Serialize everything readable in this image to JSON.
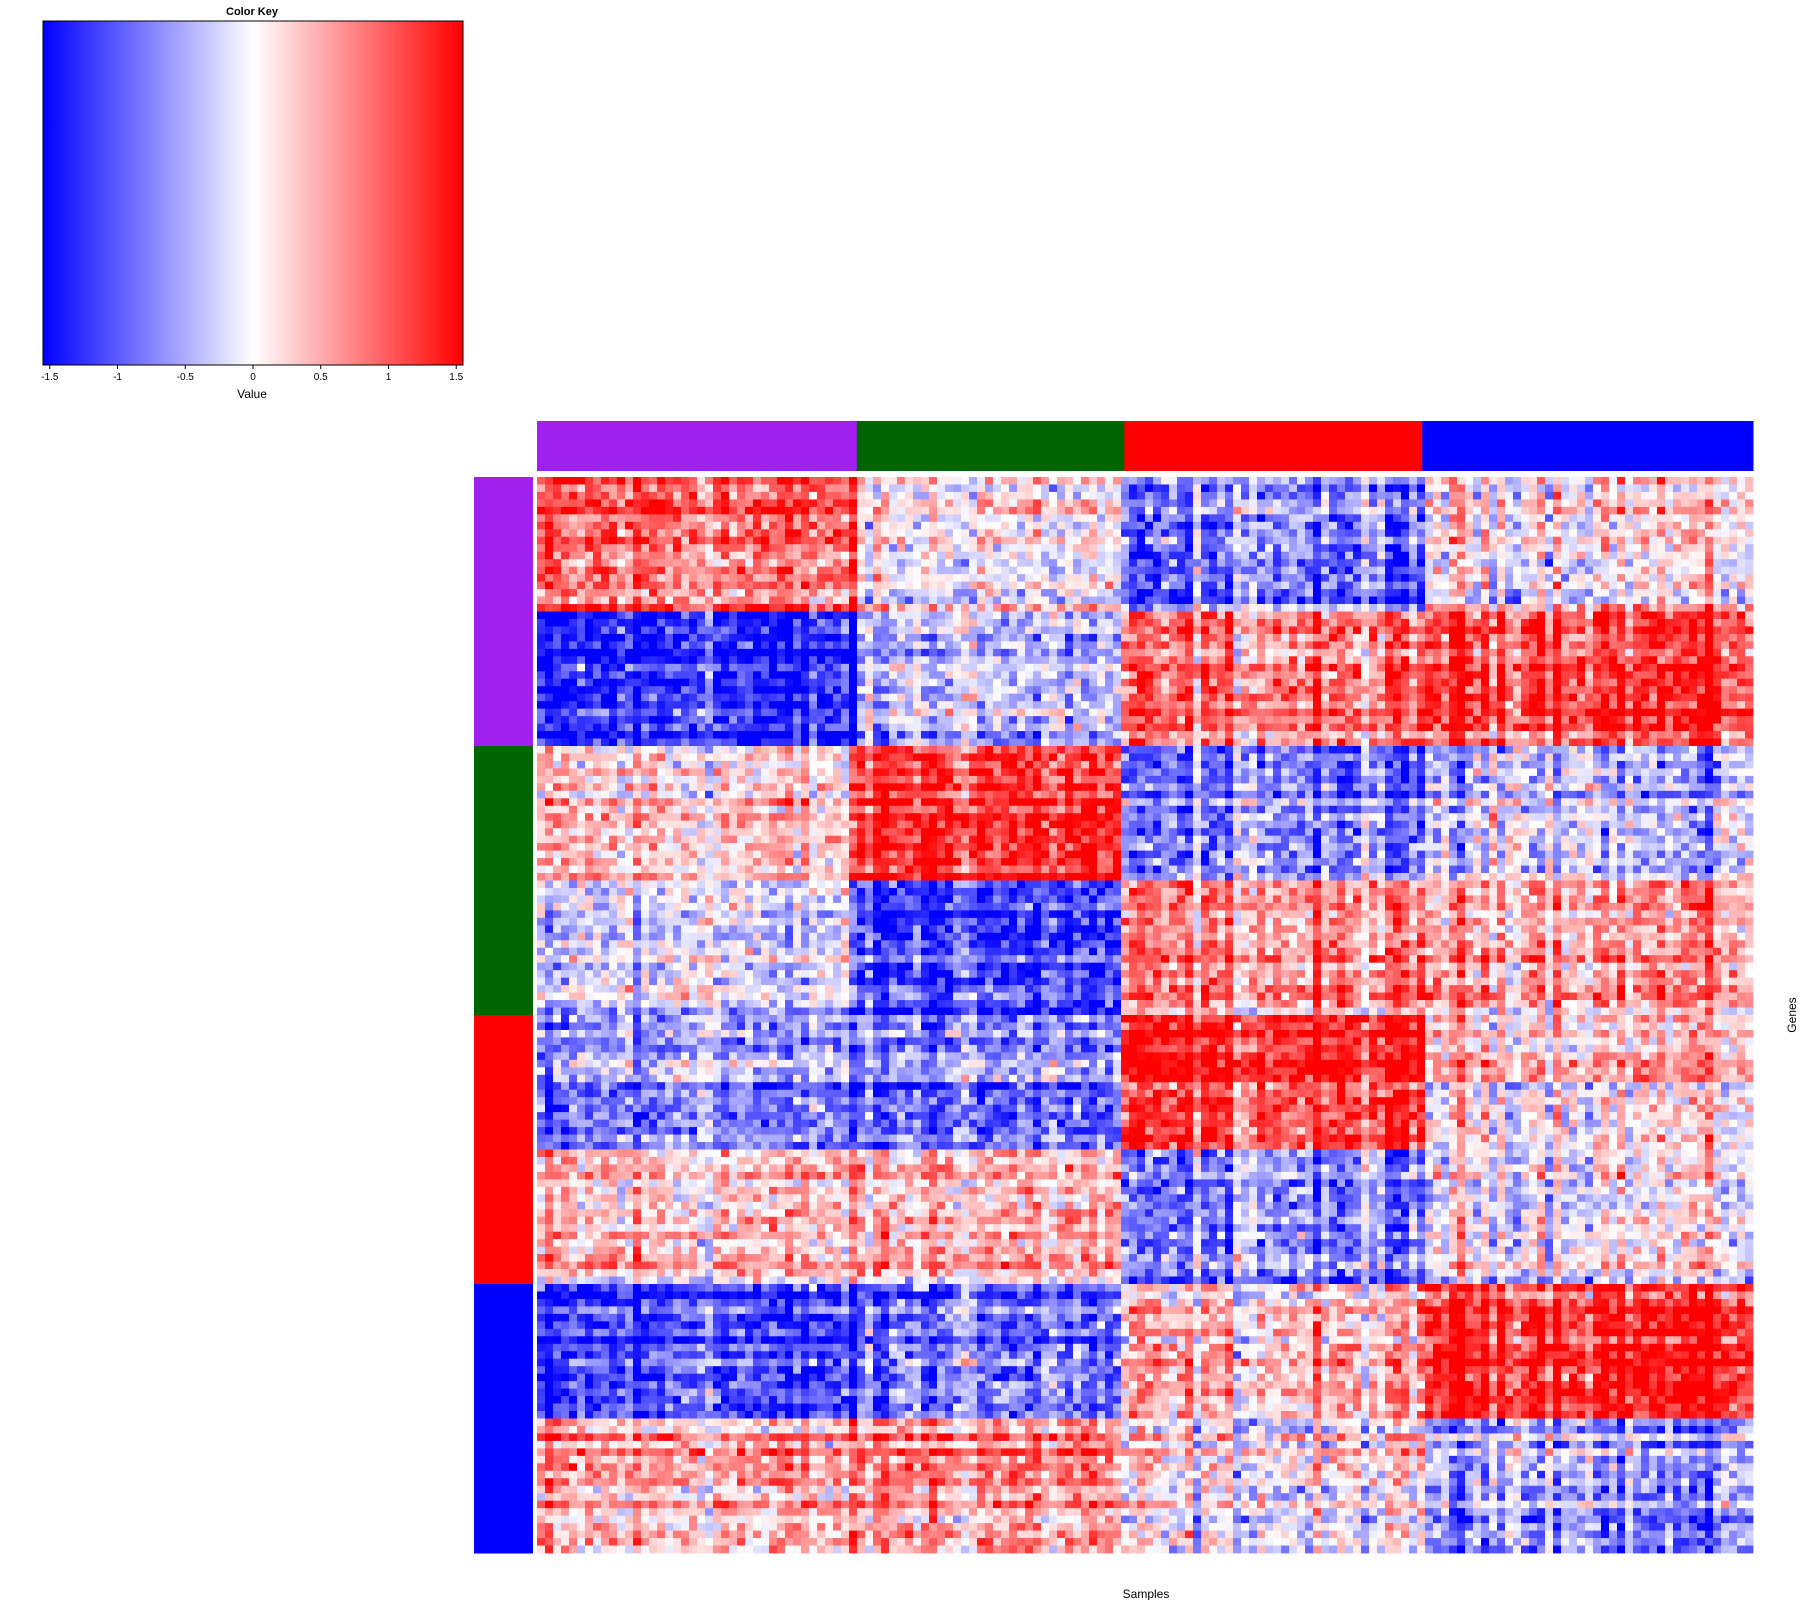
{
  "chart_data": {
    "type": "heatmap",
    "title": "",
    "xlabel": "Samples",
    "ylabel": "Genes",
    "color_key": {
      "title": "Color Key",
      "xlabel": "Value",
      "range": [
        -1.55,
        1.55
      ],
      "ticks": [
        -1.5,
        -1,
        -0.5,
        0,
        0.5,
        1,
        1.5
      ],
      "tick_labels": [
        "-1.5",
        "-1",
        "-0.5",
        "0",
        "0.5",
        "1",
        "1.5"
      ],
      "colors": [
        "#0000ff",
        "#ffffff",
        "#ff0000"
      ]
    },
    "column_groups": [
      {
        "name": "purple",
        "color": "#a020f0",
        "fraction": 0.263
      },
      {
        "name": "darkgreen",
        "color": "#006400",
        "fraction": 0.22
      },
      {
        "name": "red",
        "color": "#ff0000",
        "fraction": 0.245
      },
      {
        "name": "blue",
        "color": "#0000ff",
        "fraction": 0.272
      }
    ],
    "row_groups": [
      {
        "name": "purple",
        "color": "#a020f0",
        "fraction": 0.25
      },
      {
        "name": "darkgreen",
        "color": "#006400",
        "fraction": 0.25
      },
      {
        "name": "red",
        "color": "#ff0000",
        "fraction": 0.25
      },
      {
        "name": "blue",
        "color": "#0000ff",
        "fraction": 0.25
      }
    ],
    "blocks": [
      [
        0.9,
        0.1,
        -0.7,
        0.2
      ],
      [
        -1.3,
        -0.4,
        0.7,
        1.2
      ],
      [
        0.2,
        1.2,
        -0.8,
        -0.5
      ],
      [
        -0.2,
        -1.2,
        0.6,
        0.6
      ],
      [
        -0.6,
        -0.8,
        1.2,
        0.3
      ],
      [
        0.4,
        0.5,
        -0.6,
        0.1
      ],
      [
        -1.0,
        -0.8,
        0.4,
        1.5
      ],
      [
        0.5,
        0.7,
        0.0,
        -0.6
      ]
    ]
  }
}
